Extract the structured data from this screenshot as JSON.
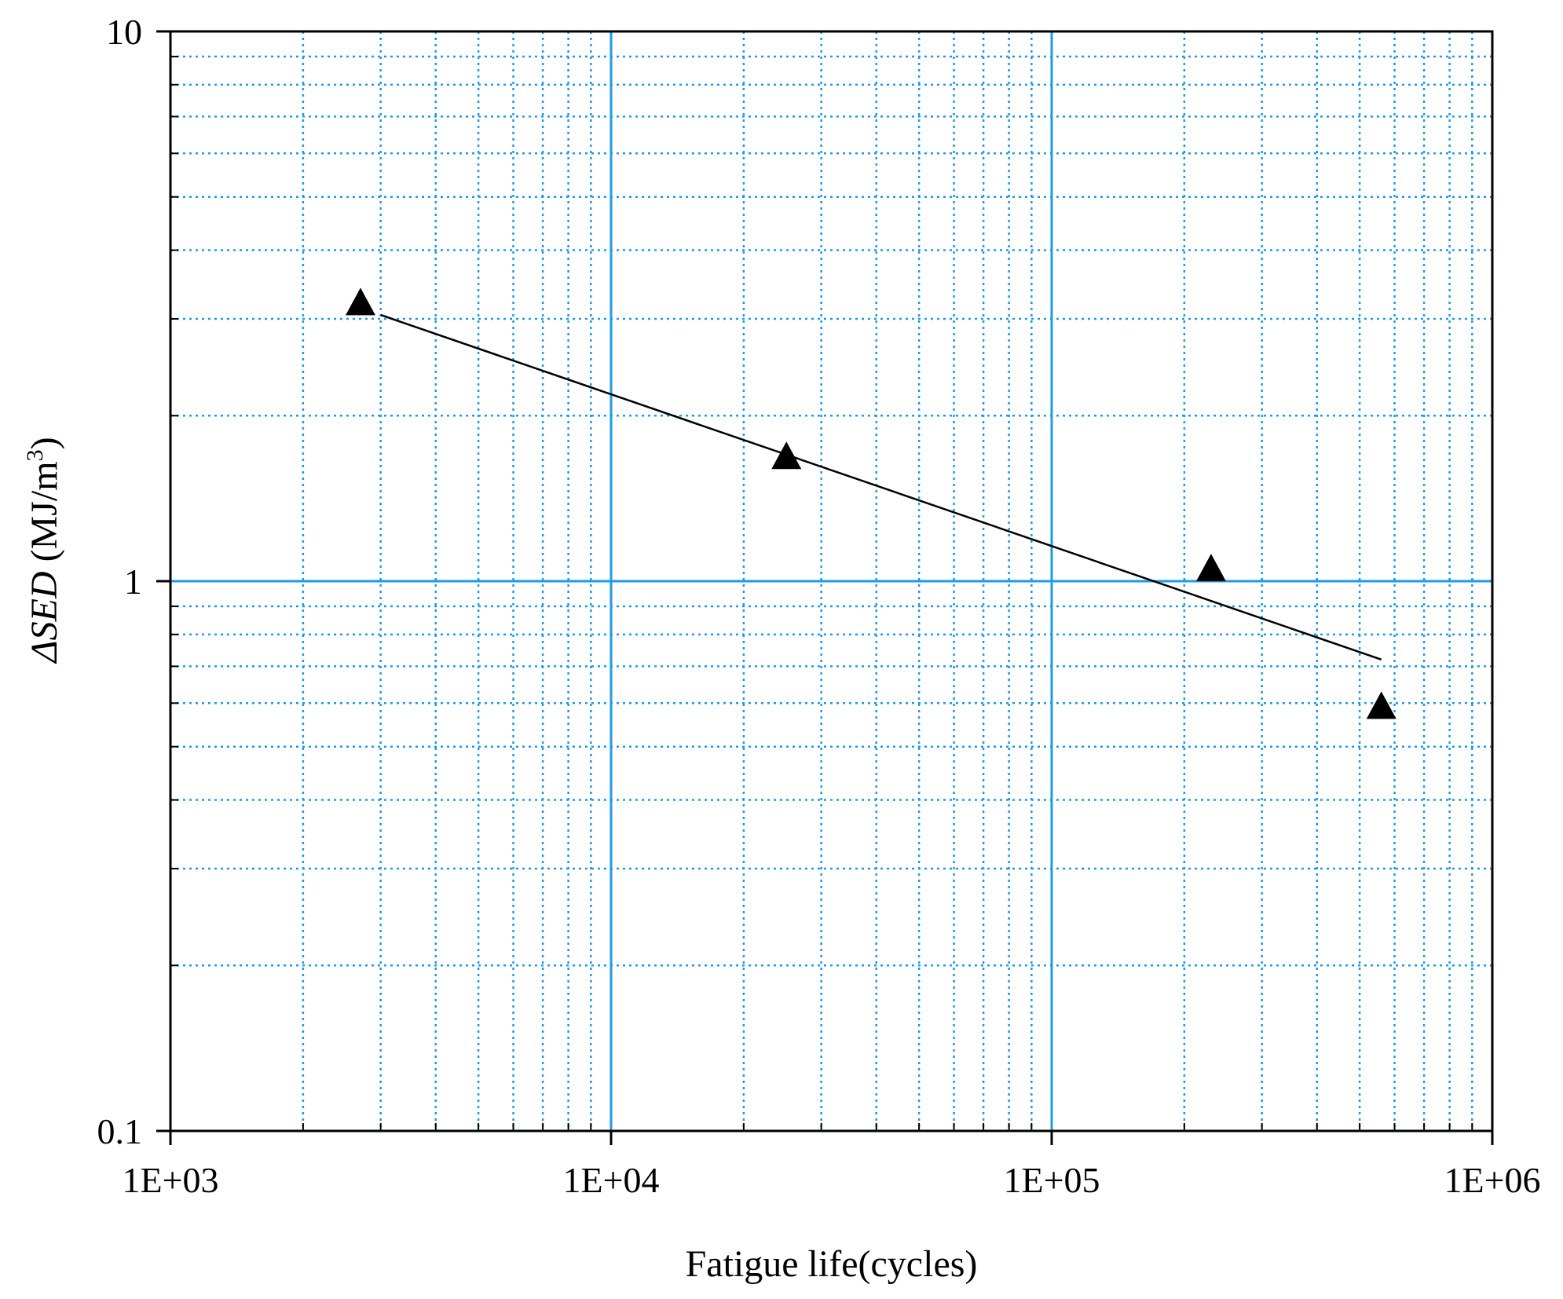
{
  "chart_data": {
    "type": "scatter",
    "xlabel": "Fatigue life(cycles)",
    "ylabel_symbol": "ΔSED",
    "ylabel_unit": " (MJ/m",
    "ylabel_exp": "3",
    "ylabel_close": ")",
    "x_scale": "log",
    "y_scale": "log",
    "xlim": [
      1000,
      1000000
    ],
    "ylim": [
      0.1,
      10
    ],
    "x_ticks": [
      1000,
      10000,
      100000,
      1000000
    ],
    "x_tick_labels": [
      "1E+03",
      "1E+04",
      "1E+05",
      "1E+06"
    ],
    "y_ticks": [
      0.1,
      1,
      10
    ],
    "y_tick_labels": [
      "0.1",
      "1",
      "10"
    ],
    "grid": true,
    "colors": {
      "major_grid": "#1e9be6",
      "minor_grid": "#1e9be6",
      "axis": "#000000",
      "marker": "#000000",
      "fit_line": "#000000"
    },
    "series": [
      {
        "marker": "triangle",
        "x": [
          2700,
          25000,
          230000,
          560000
        ],
        "y": [
          3.2,
          1.68,
          1.05,
          0.59
        ]
      }
    ],
    "fit_line": {
      "x": [
        3000,
        560000
      ],
      "y": [
        3.05,
        0.72
      ]
    }
  }
}
